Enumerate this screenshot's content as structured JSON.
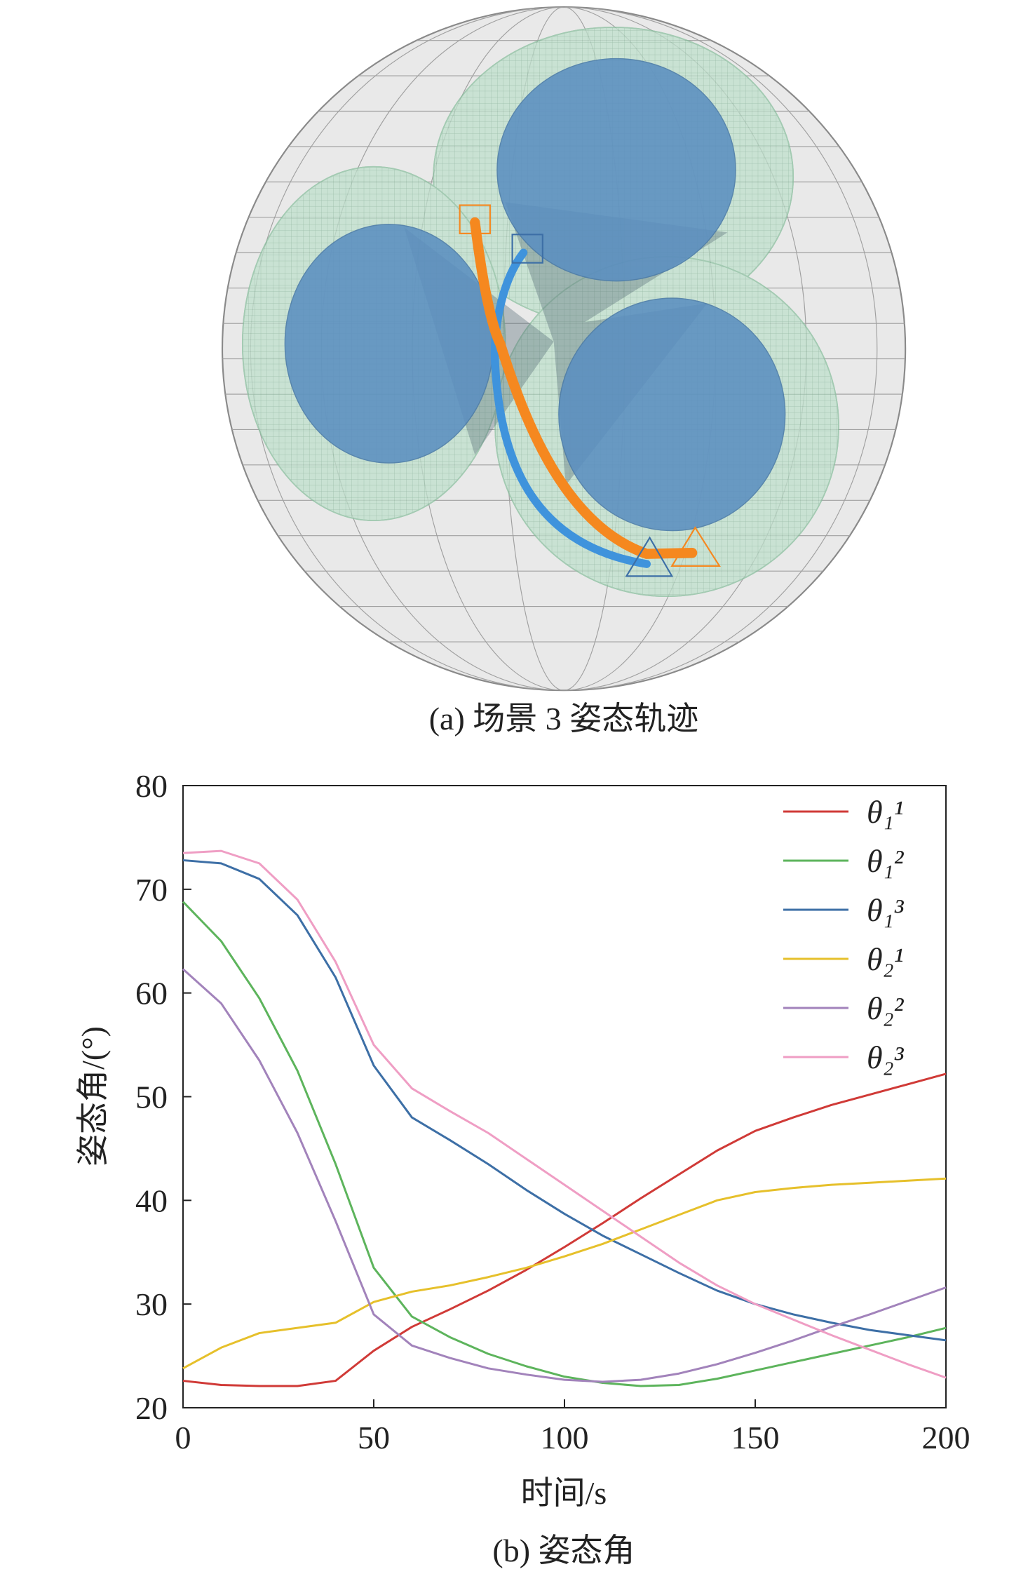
{
  "figure_a": {
    "caption": "(a) 场景 3 姿态轨迹"
  },
  "chart_data": {
    "type": "line",
    "caption": "(b) 姿态角",
    "xlabel": "时间/s",
    "ylabel": "姿态角/(°)",
    "xlim": [
      0,
      200
    ],
    "xticks": [
      0,
      50,
      100,
      150,
      200
    ],
    "ylim": [
      20,
      80
    ],
    "yticks": [
      20,
      30,
      40,
      50,
      60,
      70,
      80
    ],
    "legend": "upper right",
    "x": [
      0,
      10,
      20,
      30,
      40,
      50,
      60,
      70,
      80,
      90,
      100,
      110,
      120,
      130,
      140,
      150,
      160,
      170,
      180,
      190,
      200
    ],
    "series": [
      {
        "name": "θ₁¹",
        "color": "#d03a37",
        "values": [
          22.6,
          22.2,
          22.1,
          22.1,
          22.6,
          25.5,
          27.8,
          29.5,
          31.3,
          33.3,
          35.5,
          37.8,
          40.2,
          42.5,
          44.8,
          46.7,
          48,
          49.2,
          50.2,
          51.2,
          52.2
        ]
      },
      {
        "name": "θ₁²",
        "color": "#5db45c",
        "values": [
          68.8,
          65,
          59.5,
          52.5,
          43.5,
          33.5,
          28.8,
          26.8,
          25.2,
          24,
          23,
          22.4,
          22.1,
          22.2,
          22.8,
          23.6,
          24.4,
          25.2,
          26,
          26.8,
          27.7
        ]
      },
      {
        "name": "θ₁³",
        "color": "#3d6fa6",
        "values": [
          72.8,
          72.5,
          71,
          67.5,
          61.5,
          53,
          48,
          45.8,
          43.5,
          41,
          38.7,
          36.6,
          34.8,
          33,
          31.3,
          30,
          29,
          28.2,
          27.5,
          27,
          26.5
        ]
      },
      {
        "name": "θ₂¹",
        "color": "#e6c02b",
        "values": [
          23.8,
          25.8,
          27.2,
          27.7,
          28.2,
          30.2,
          31.2,
          31.8,
          32.6,
          33.5,
          34.6,
          35.8,
          37.2,
          38.6,
          40,
          40.8,
          41.2,
          41.5,
          41.7,
          41.9,
          42.1
        ]
      },
      {
        "name": "θ₂²",
        "color": "#a283bb",
        "values": [
          62.3,
          59,
          53.5,
          46.5,
          38,
          29,
          26,
          24.8,
          23.8,
          23.2,
          22.7,
          22.5,
          22.7,
          23.3,
          24.2,
          25.3,
          26.5,
          27.8,
          29,
          30.3,
          31.6
        ]
      },
      {
        "name": "θ₂³",
        "color": "#ef9ec4",
        "values": [
          73.5,
          73.7,
          72.5,
          69,
          63,
          55,
          50.8,
          48.6,
          46.5,
          44,
          41.5,
          39,
          36.5,
          34,
          31.8,
          30,
          28.5,
          27,
          25.6,
          24.2,
          22.9
        ]
      }
    ]
  }
}
